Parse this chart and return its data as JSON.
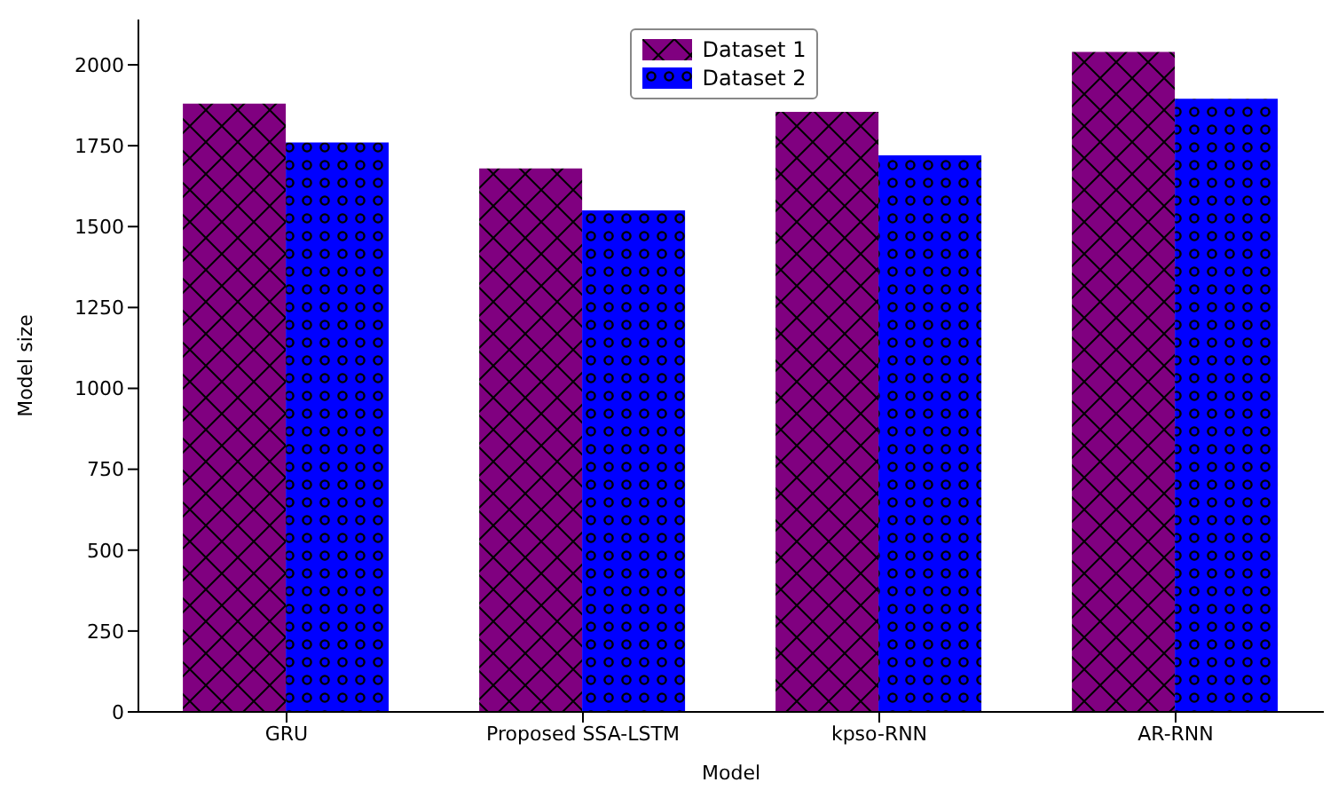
{
  "chart_data": {
    "type": "bar",
    "xlabel": "Model",
    "ylabel": "Model size",
    "categories": [
      "GRU",
      "Proposed SSA-LSTM",
      "kpso-RNN",
      "AR-RNN"
    ],
    "series": [
      {
        "name": "Dataset 1",
        "color": "#800080",
        "values": [
          1880,
          1680,
          1855,
          2040
        ]
      },
      {
        "name": "Dataset 2",
        "color": "#0000ff",
        "values": [
          1760,
          1550,
          1720,
          1895
        ]
      }
    ],
    "ylim": [
      0,
      2140
    ],
    "yticks": [
      0,
      250,
      500,
      750,
      1000,
      1250,
      1500,
      1750,
      2000
    ],
    "grid": false,
    "legend": "top"
  }
}
